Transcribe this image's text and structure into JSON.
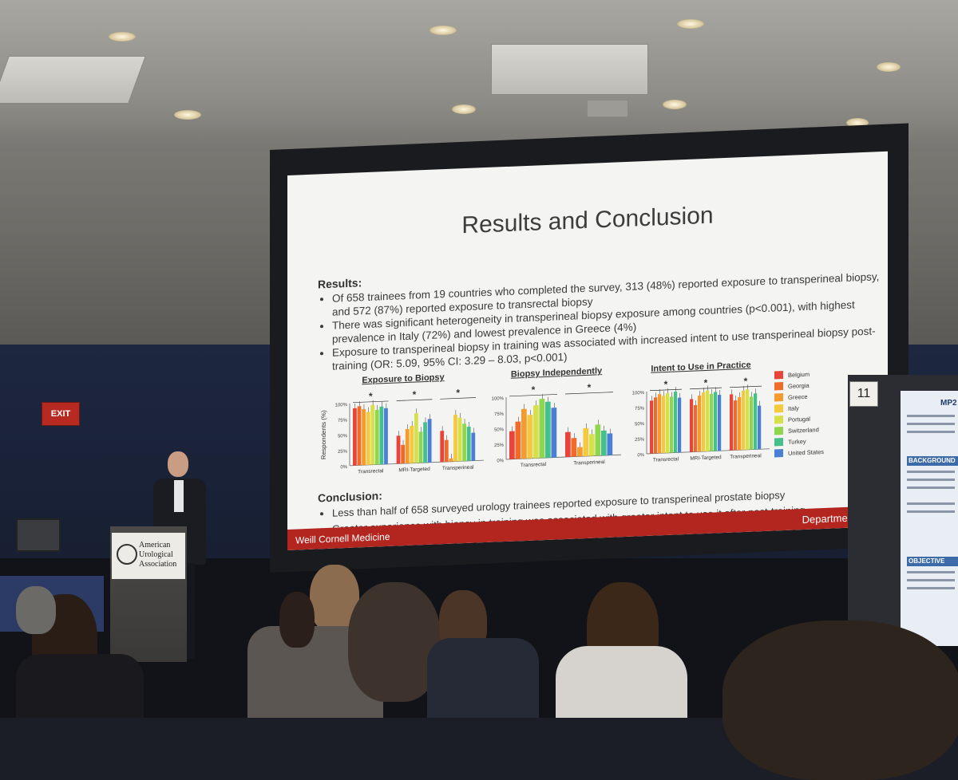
{
  "slide": {
    "title": "Results and Conclusion",
    "results_heading": "Results:",
    "results_bullets": [
      "Of 658 trainees from 19 countries who completed the survey, 313 (48%) reported exposure to transperineal biopsy, and 572 (87%) reported exposure to transrectal biopsy",
      "There was significant heterogeneity in transperineal biopsy exposure among countries (p<0.001), with highest prevalence in Italy (72%) and lowest prevalence in Greece (4%)",
      "Exposure to transperineal biopsy in training was associated with increased intent to use transperineal biopsy post-training (OR: 5.09, 95% CI: 3.29 – 8.03, p<0.001)"
    ],
    "conclusion_heading": "Conclusion:",
    "conclusion_bullets": [
      "Less than half of 658 surveyed urology trainees reported exposure to transperineal prostate biopsy",
      "Greater experience with biopsy in training was associated with greater intent to use it after post-training"
    ],
    "footer_left": "Weill Cornell Medicine",
    "footer_right": "Department of U",
    "ylabel": "Respondents (%)",
    "yticks": [
      "100%",
      "75%",
      "50%",
      "25%",
      "0%"
    ],
    "star": "*",
    "legend": [
      {
        "name": "Belgium",
        "color": "#e8443a"
      },
      {
        "name": "Georgia",
        "color": "#f06a2a"
      },
      {
        "name": "Greece",
        "color": "#f59a2e"
      },
      {
        "name": "Italy",
        "color": "#f4c93c"
      },
      {
        "name": "Portugal",
        "color": "#d6e04a"
      },
      {
        "name": "Switzerland",
        "color": "#8fd64e"
      },
      {
        "name": "Turkey",
        "color": "#45c08a"
      },
      {
        "name": "United States",
        "color": "#4b7fd6"
      }
    ],
    "figures": [
      {
        "title": "Exposure to Biopsy",
        "groups": [
          "Transrectal",
          "MRI-Targeted",
          "Transperineal"
        ]
      },
      {
        "title": "Biopsy Independently",
        "groups": [
          "Transrectal",
          "Transperineal"
        ]
      },
      {
        "title": "Intent to Use in Practice",
        "groups": [
          "Transrectal",
          "MRI-Targeted",
          "Transperineal"
        ]
      }
    ]
  },
  "room": {
    "podium_sign": [
      "American",
      "Urological",
      "Association"
    ],
    "exit_sign": "EXIT",
    "poster_number": "11",
    "poster_title": "MP2",
    "poster_sections": [
      "BACKGROUND",
      "OBJECTIVE"
    ]
  }
}
